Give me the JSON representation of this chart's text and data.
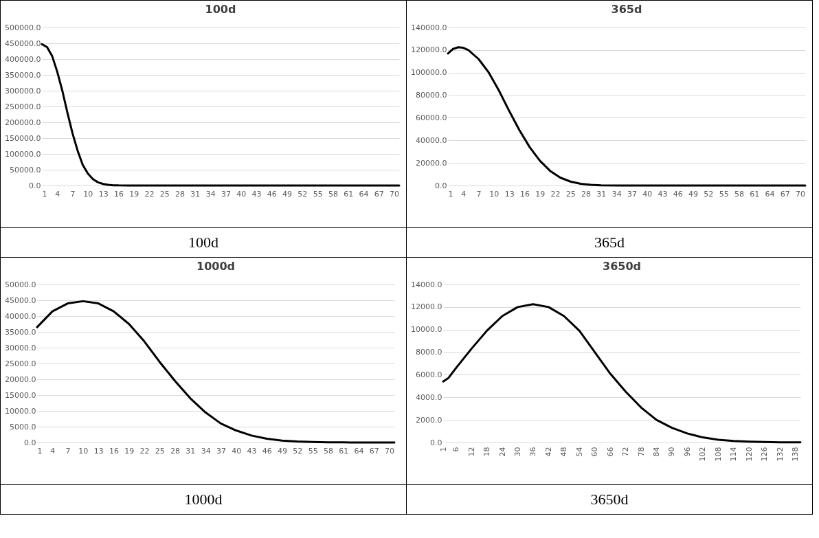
{
  "chart_data": [
    {
      "type": "line",
      "title": "100d",
      "annotations": [
        "100d"
      ],
      "grid": "y",
      "line_style": "solid",
      "marker": "none",
      "xlim": [
        1,
        71
      ],
      "xticks": [
        1,
        4,
        7,
        10,
        13,
        16,
        19,
        22,
        25,
        28,
        31,
        34,
        37,
        40,
        43,
        46,
        49,
        52,
        55,
        58,
        61,
        64,
        67,
        70
      ],
      "ylim": [
        0,
        500000
      ],
      "yticks": [
        {
          "value": 0,
          "label": "0.0"
        },
        {
          "value": 50000,
          "label": "50000.0"
        },
        {
          "value": 100000,
          "label": "100000.0"
        },
        {
          "value": 150000,
          "label": "150000.0"
        },
        {
          "value": 200000,
          "label": "200000.0"
        },
        {
          "value": 250000,
          "label": "250000.0"
        },
        {
          "value": 300000,
          "label": "300000.0"
        },
        {
          "value": 350000,
          "label": "350000.0"
        },
        {
          "value": 400000,
          "label": "400000.0"
        },
        {
          "value": 450000,
          "label": "450000.0"
        },
        {
          "value": 500000,
          "label": "500000.0"
        }
      ],
      "series": [
        {
          "color": "#000000",
          "x": [
            1,
            2,
            3,
            4,
            5,
            6,
            7,
            8,
            9,
            10,
            11,
            12,
            13,
            14,
            15,
            16,
            18,
            20,
            30,
            40,
            50,
            60,
            71
          ],
          "values": [
            447000,
            438000,
            410000,
            360000,
            300000,
            230000,
            165000,
            110000,
            65000,
            38000,
            20000,
            10000,
            5000,
            2000,
            800,
            300,
            100,
            0,
            0,
            0,
            0,
            0,
            0
          ]
        }
      ]
    },
    {
      "type": "line",
      "title": "365d",
      "annotations": [
        "365d"
      ],
      "grid": "y",
      "line_style": "solid",
      "marker": "none",
      "xlim": [
        1,
        71
      ],
      "xticks": [
        1,
        4,
        7,
        10,
        13,
        16,
        19,
        22,
        25,
        28,
        31,
        34,
        37,
        40,
        43,
        46,
        49,
        52,
        55,
        58,
        61,
        64,
        67,
        70
      ],
      "ylim": [
        0,
        140000
      ],
      "yticks": [
        {
          "value": 0,
          "label": "0.0"
        },
        {
          "value": 20000,
          "label": "20000.0"
        },
        {
          "value": 40000,
          "label": "40000.0"
        },
        {
          "value": 60000,
          "label": "60000.0"
        },
        {
          "value": 80000,
          "label": "80000.0"
        },
        {
          "value": 100000,
          "label": "100000.0"
        },
        {
          "value": 120000,
          "label": "120000.0"
        },
        {
          "value": 140000,
          "label": "140000.0"
        }
      ],
      "series": [
        {
          "color": "#000000",
          "x": [
            1,
            2,
            3,
            4,
            5,
            7,
            9,
            11,
            13,
            15,
            17,
            19,
            21,
            23,
            25,
            27,
            29,
            31,
            35,
            45,
            55,
            71
          ],
          "values": [
            117000,
            121000,
            122500,
            122000,
            120000,
            112000,
            100000,
            84000,
            66000,
            49000,
            34000,
            22000,
            13000,
            7000,
            3500,
            1500,
            600,
            200,
            0,
            0,
            0,
            0
          ]
        }
      ]
    },
    {
      "type": "line",
      "title": "1000d",
      "annotations": [
        "1000d"
      ],
      "grid": "y",
      "line_style": "solid",
      "marker": "none",
      "xlim": [
        1,
        71
      ],
      "xticks": [
        1,
        4,
        7,
        10,
        13,
        16,
        19,
        22,
        25,
        28,
        31,
        34,
        37,
        40,
        43,
        46,
        49,
        52,
        55,
        58,
        61,
        64,
        67,
        70
      ],
      "ylim": [
        0,
        50000
      ],
      "yticks": [
        {
          "value": 0,
          "label": "0.0"
        },
        {
          "value": 5000,
          "label": "5000.0"
        },
        {
          "value": 10000,
          "label": "10000.0"
        },
        {
          "value": 15000,
          "label": "15000.0"
        },
        {
          "value": 20000,
          "label": "20000.0"
        },
        {
          "value": 25000,
          "label": "25000.0"
        },
        {
          "value": 30000,
          "label": "30000.0"
        },
        {
          "value": 35000,
          "label": "35000.0"
        },
        {
          "value": 40000,
          "label": "40000.0"
        },
        {
          "value": 45000,
          "label": "45000.0"
        },
        {
          "value": 50000,
          "label": "50000.0"
        }
      ],
      "series": [
        {
          "color": "#000000",
          "x": [
            1,
            4,
            7,
            10,
            13,
            16,
            19,
            22,
            25,
            28,
            31,
            34,
            37,
            40,
            43,
            46,
            49,
            52,
            55,
            58,
            61,
            64,
            71
          ],
          "values": [
            36500,
            41500,
            44000,
            44700,
            44000,
            41500,
            37500,
            32000,
            25500,
            19500,
            14000,
            9500,
            6000,
            3800,
            2200,
            1200,
            600,
            300,
            150,
            70,
            30,
            10,
            0
          ]
        }
      ]
    },
    {
      "type": "line",
      "title": "3650d",
      "annotations": [
        "3650d"
      ],
      "grid": "y",
      "line_style": "solid",
      "marker": "none",
      "xlim": [
        1,
        140
      ],
      "xticks": [
        1,
        6,
        12,
        18,
        24,
        30,
        36,
        42,
        48,
        54,
        60,
        66,
        72,
        78,
        84,
        90,
        96,
        102,
        108,
        114,
        120,
        126,
        132,
        138
      ],
      "ylim": [
        0,
        14000
      ],
      "yticks": [
        {
          "value": 0,
          "label": "0.0"
        },
        {
          "value": 2000,
          "label": "2000.0"
        },
        {
          "value": 4000,
          "label": "4000.0"
        },
        {
          "value": 6000,
          "label": "6000.0"
        },
        {
          "value": 8000,
          "label": "8000.0"
        },
        {
          "value": 10000,
          "label": "10000.0"
        },
        {
          "value": 12000,
          "label": "12000.0"
        },
        {
          "value": 14000,
          "label": "14000.0"
        }
      ],
      "series": [
        {
          "color": "#000000",
          "x": [
            1,
            3,
            6,
            12,
            18,
            24,
            30,
            36,
            42,
            48,
            54,
            60,
            66,
            72,
            78,
            84,
            90,
            96,
            102,
            108,
            114,
            120,
            126,
            132,
            140
          ],
          "values": [
            5400,
            5700,
            6600,
            8300,
            9900,
            11200,
            12000,
            12250,
            12000,
            11200,
            9900,
            8000,
            6100,
            4500,
            3100,
            2000,
            1300,
            800,
            450,
            250,
            130,
            70,
            40,
            20,
            10
          ]
        }
      ]
    }
  ]
}
